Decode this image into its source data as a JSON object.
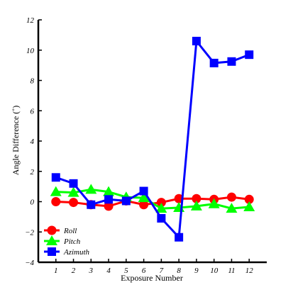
{
  "chart_data": {
    "type": "line",
    "title": "",
    "xlabel": "Exposure Number",
    "ylabel": "Angle Difference (˚)",
    "x": [
      1,
      2,
      3,
      4,
      5,
      6,
      7,
      8,
      9,
      10,
      11,
      12
    ],
    "xlim": [
      0,
      13
    ],
    "ylim": [
      -4,
      12
    ],
    "xticks": [
      "1",
      "2",
      "3",
      "4",
      "5",
      "6",
      "7",
      "8",
      "9",
      "10",
      "11",
      "12"
    ],
    "yticks": [
      "−4",
      "−2",
      "0",
      "2",
      "4",
      "6",
      "8",
      "10",
      "12"
    ],
    "ytick_values": [
      -4,
      -2,
      0,
      2,
      4,
      6,
      8,
      10,
      12
    ],
    "grid": false,
    "legend_position": "bottom-left",
    "series": [
      {
        "name": "Roll",
        "color": "#ff0000",
        "marker": "circle",
        "values": [
          0.0,
          -0.05,
          -0.2,
          -0.3,
          0.05,
          -0.2,
          -0.05,
          0.2,
          0.2,
          0.15,
          0.3,
          0.15
        ]
      },
      {
        "name": "Pitch",
        "color": "#00ff00",
        "marker": "triangle",
        "values": [
          0.65,
          0.6,
          0.8,
          0.65,
          0.3,
          0.25,
          -0.45,
          -0.4,
          -0.3,
          -0.15,
          -0.45,
          -0.35
        ]
      },
      {
        "name": "Azimuth",
        "color": "#0000ff",
        "marker": "square",
        "values": [
          1.6,
          1.2,
          -0.2,
          0.15,
          0.05,
          0.7,
          -1.1,
          -2.35,
          10.6,
          9.15,
          9.25,
          9.7
        ]
      }
    ]
  }
}
